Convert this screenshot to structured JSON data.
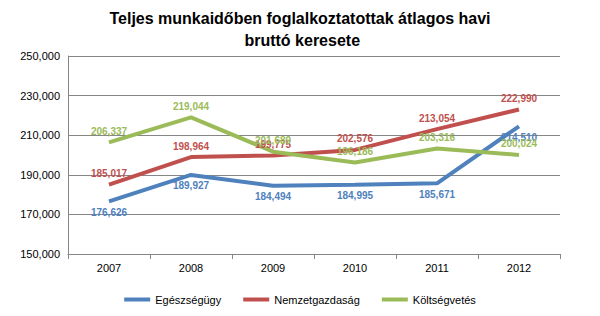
{
  "chart_data": {
    "type": "line",
    "title": "Teljes munkaidőben foglalkoztatottak átlagos havi bruttó keresete",
    "categories": [
      "2007",
      "2008",
      "2009",
      "2010",
      "2011",
      "2012"
    ],
    "series": [
      {
        "name": "Egészségügy",
        "color": "#4F81BD",
        "values": [
          176626,
          189927,
          184494,
          184995,
          185671,
          214510
        ],
        "value_labels": [
          "176,626",
          "189,927",
          "184,494",
          "184,995",
          "185,671",
          "214,510"
        ]
      },
      {
        "name": "Nemzetgazdaság",
        "color": "#C0504D",
        "values": [
          185017,
          198964,
          199775,
          202576,
          213054,
          222990
        ],
        "value_labels": [
          "185,017",
          "198,964",
          "199,775",
          "202,576",
          "213,054",
          "222,990"
        ]
      },
      {
        "name": "Költségvetés",
        "color": "#9BBB59",
        "values": [
          206337,
          219044,
          201689,
          196186,
          203316,
          200024
        ],
        "value_labels": [
          "206,337",
          "219,044",
          "201,689",
          "196,186",
          "203,316",
          "200,024"
        ]
      }
    ],
    "ylim": [
      150000,
      250000
    ],
    "yticks": [
      {
        "value": 150000,
        "label": "150,000"
      },
      {
        "value": 170000,
        "label": "170,000"
      },
      {
        "value": 190000,
        "label": "190,000"
      },
      {
        "value": 210000,
        "label": "210,000"
      },
      {
        "value": 230000,
        "label": "230,000"
      },
      {
        "value": 250000,
        "label": "250,000"
      }
    ],
    "grid": true,
    "legend": "bottom",
    "data_labels": true
  }
}
